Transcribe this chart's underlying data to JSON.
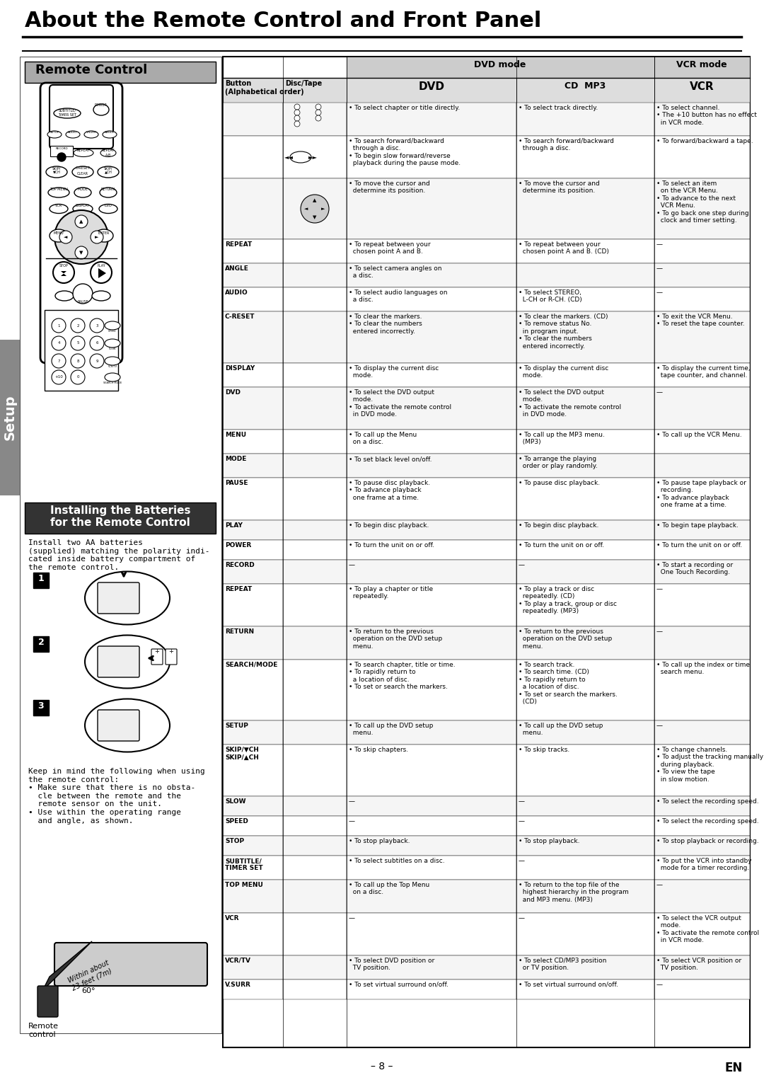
{
  "title": "About the Remote Control and Front Panel",
  "page_bg": "#ffffff",
  "title_color": "#000000",
  "section_bg_dark": "#555555",
  "section_bg_gray": "#cccccc",
  "header_bg": "#999999",
  "table_header_dvd": "DVD mode",
  "table_header_vcr": "VCR mode",
  "col_button": "Button\n(Alphabetical order)",
  "col_disctape": "Disc/Tape",
  "setup_tab_color": "#888888",
  "remote_label": "Remote Control",
  "battery_label": "Installing the Batteries\nfor the Remote Control",
  "battery_text": "Install two AA batteries\n(supplied) matching the polarity indi-\ncated inside battery compartment of\nthe remote control.",
  "keep_in_mind_text": "Keep in mind the following when using\nthe remote control:\n• Make sure that there is no obsta-\n  cle between the remote and the\n  remote sensor on the unit.\n• Use within the operating range\n  and angle, as shown.",
  "remote_control_label": "Remote\ncontrol",
  "within_about_text": "Within about\n23 feet (7m)",
  "angle_text": "60°",
  "page_num": "– 8 –",
  "en_label": "EN",
  "table_rows": [
    {
      "button": "",
      "disctape": "",
      "dvd_col1": "• To select chapter or title directly.",
      "dvd_col2": "• To select track directly.",
      "vcr": "• To select channel.\n• The +10 button has no effect\n  in VCR mode."
    },
    {
      "button": "",
      "disctape": "",
      "dvd_col1": "• To search forward/backward\n  through a disc.\n• To begin slow forward/reverse\n  playback during the pause mode.",
      "dvd_col2": "• To search forward/backward\n  through a disc.",
      "vcr": "• To forward/backward a tape."
    },
    {
      "button": "",
      "disctape": "",
      "dvd_col1": "• To move the cursor and\n  determine its position.",
      "dvd_col2": "• To move the cursor and\n  determine its position.",
      "vcr": "• To select an item\n  on the VCR Menu.\n• To advance to the next\n  VCR Menu.\n• To go back one step during\n  clock and timer setting."
    },
    {
      "button": "REPEAT",
      "disctape": "",
      "dvd_col1": "• To repeat between your\n  chosen point A and B.",
      "dvd_col2": "• To repeat between your\n  chosen point A and B. (CD)",
      "vcr": "—"
    },
    {
      "button": "ANGLE",
      "disctape": "",
      "dvd_col1": "• To select camera angles on\n  a disc.",
      "dvd_col2": "",
      "vcr": "—"
    },
    {
      "button": "AUDIO",
      "disctape": "",
      "dvd_col1": "• To select audio languages on\n  a disc.",
      "dvd_col2": "• To select STEREO,\n  L-CH or R-CH. (CD)",
      "vcr": "—"
    },
    {
      "button": "C-RESET",
      "disctape": "",
      "dvd_col1": "• To clear the markers.\n• To clear the numbers\n  entered incorrectly.",
      "dvd_col2": "• To clear the markers. (CD)\n• To remove status No.\n  in program input.\n• To clear the numbers\n  entered incorrectly.",
      "vcr": "• To exit the VCR Menu.\n• To reset the tape counter."
    },
    {
      "button": "DISPLAY",
      "disctape": "",
      "dvd_col1": "• To display the current disc\n  mode.",
      "dvd_col2": "• To display the current disc\n  mode.",
      "vcr": "• To display the current time,\n  tape counter, and channel."
    },
    {
      "button": "DVD",
      "disctape": "",
      "dvd_col1": "• To select the DVD output\n  mode.\n• To activate the remote control\n  in DVD mode.",
      "dvd_col2": "• To select the DVD output\n  mode.\n• To activate the remote control\n  in DVD mode.",
      "vcr": "—"
    },
    {
      "button": "MENU",
      "disctape": "",
      "dvd_col1": "• To call up the Menu\n  on a disc.",
      "dvd_col2": "• To call up the MP3 menu.\n  (MP3)",
      "vcr": "• To call up the VCR Menu."
    },
    {
      "button": "MODE",
      "disctape": "",
      "dvd_col1": "• To set black level on/off.",
      "dvd_col2": "• To arrange the playing\n  order or play randomly.",
      "vcr": ""
    },
    {
      "button": "PAUSE",
      "disctape": "",
      "dvd_col1": "• To pause disc playback.\n• To advance playback\n  one frame at a time.",
      "dvd_col2": "• To pause disc playback.",
      "vcr": "• To pause tape playback or\n  recording.\n• To advance playback\n  one frame at a time."
    },
    {
      "button": "PLAY",
      "disctape": "",
      "dvd_col1": "• To begin disc playback.",
      "dvd_col2": "• To begin disc playback.",
      "vcr": "• To begin tape playback."
    },
    {
      "button": "POWER",
      "disctape": "",
      "dvd_col1": "• To turn the unit on or off.",
      "dvd_col2": "• To turn the unit on or off.",
      "vcr": "• To turn the unit on or off."
    },
    {
      "button": "RECORD",
      "disctape": "",
      "dvd_col1": "—",
      "dvd_col2": "—",
      "vcr": "• To start a recording or\n  One Touch Recording."
    },
    {
      "button": "REPEAT",
      "disctape": "",
      "dvd_col1": "• To play a chapter or title\n  repeatedly.",
      "dvd_col2": "• To play a track or disc\n  repeatedly. (CD)\n• To play a track, group or disc\n  repeatedly. (MP3)",
      "vcr": "—"
    },
    {
      "button": "RETURN",
      "disctape": "",
      "dvd_col1": "• To return to the previous\n  operation on the DVD setup\n  menu.",
      "dvd_col2": "• To return to the previous\n  operation on the DVD setup\n  menu.",
      "vcr": "—"
    },
    {
      "button": "SEARCH/MODE",
      "disctape": "",
      "dvd_col1": "• To search chapter, title or time.\n• To rapidly return to\n  a location of disc.\n• To set or search the markers.",
      "dvd_col2": "• To search track.\n• To search time. (CD)\n• To rapidly return to\n  a location of disc.\n• To set or search the markers.\n  (CD)",
      "vcr": "• To call up the index or time\n  search menu."
    },
    {
      "button": "SETUP",
      "disctape": "",
      "dvd_col1": "• To call up the DVD setup\n  menu.",
      "dvd_col2": "• To call up the DVD setup\n  menu.",
      "vcr": "—"
    },
    {
      "button": "SKIP/▼CH\nSKIP/▲CH",
      "disctape": "",
      "dvd_col1": "• To skip chapters.",
      "dvd_col2": "• To skip tracks.",
      "vcr": "• To change channels.\n• To adjust the tracking manually\n  during playback.\n• To view the tape\n  in slow motion."
    },
    {
      "button": "SLOW",
      "disctape": "",
      "dvd_col1": "—",
      "dvd_col2": "—",
      "vcr": "• To select the recording speed."
    },
    {
      "button": "SPEED",
      "disctape": "",
      "dvd_col1": "—",
      "dvd_col2": "—",
      "vcr": "• To select the recording speed."
    },
    {
      "button": "STOP",
      "disctape": "",
      "dvd_col1": "• To stop playback.",
      "dvd_col2": "• To stop playback.",
      "vcr": "• To stop playback or recording."
    },
    {
      "button": "SUBTITLE/\nTIMER SET",
      "disctape": "",
      "dvd_col1": "• To select subtitles on a disc.",
      "dvd_col2": "—",
      "vcr": "• To put the VCR into standby\n  mode for a timer recording."
    },
    {
      "button": "TOP MENU",
      "disctape": "",
      "dvd_col1": "• To call up the Top Menu\n  on a disc.",
      "dvd_col2": "• To return to the top file of the\n  highest hierarchy in the program\n  and MP3 menu. (MP3)",
      "vcr": "—"
    },
    {
      "button": "VCR",
      "disctape": "",
      "dvd_col1": "—",
      "dvd_col2": "—",
      "vcr": "• To select the VCR output\n  mode.\n• To activate the remote control\n  in VCR mode."
    },
    {
      "button": "VCR/TV",
      "disctape": "",
      "dvd_col1": "• To select DVD position or\n  TV position.",
      "dvd_col2": "• To select CD/MP3 position\n  or TV position.",
      "vcr": "• To select VCR position or\n  TV position."
    },
    {
      "button": "V.SURR",
      "disctape": "",
      "dvd_col1": "• To set virtual surround on/off.",
      "dvd_col2": "• To set virtual surround on/off.",
      "vcr": "—"
    }
  ]
}
